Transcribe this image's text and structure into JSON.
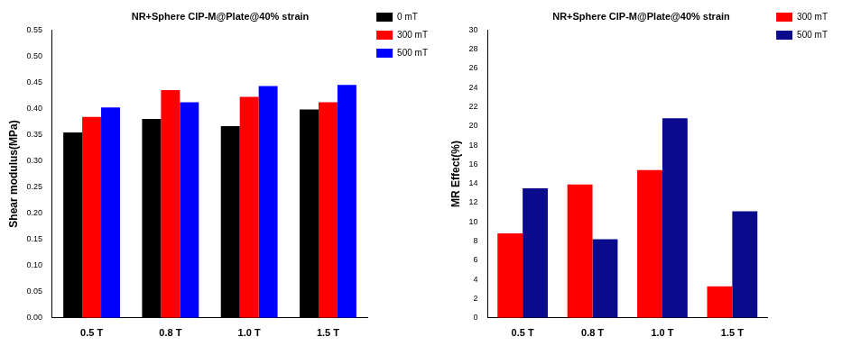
{
  "chart_data": [
    {
      "type": "bar",
      "title": "NR+Sphere CIP-M@Plate@40% strain",
      "y_label": "Shear modulus(MPa)",
      "categories": [
        "0.5 T",
        "0.8 T",
        "1.0 T",
        "1.5 T"
      ],
      "series": [
        {
          "name": "0 mT",
          "color": "#000000",
          "values": [
            0.354,
            0.38,
            0.366,
            0.398
          ]
        },
        {
          "name": "300 mT",
          "color": "#ff0000",
          "values": [
            0.384,
            0.435,
            0.422,
            0.412
          ]
        },
        {
          "name": "500 mT",
          "color": "#0000ff",
          "values": [
            0.402,
            0.412,
            0.443,
            0.445
          ]
        }
      ],
      "ylim": [
        0,
        0.55
      ],
      "yticks": [
        {
          "value": 0,
          "label": "0.00"
        },
        {
          "value": 0.05,
          "label": "0.05"
        },
        {
          "value": 0.1,
          "label": "0.10"
        },
        {
          "value": 0.15,
          "label": "0.15"
        },
        {
          "value": 0.2,
          "label": "0.20"
        },
        {
          "value": 0.25,
          "label": "0.25"
        },
        {
          "value": 0.3,
          "label": "0.30"
        },
        {
          "value": 0.35,
          "label": "0.35"
        },
        {
          "value": 0.4,
          "label": "0.40"
        },
        {
          "value": 0.45,
          "label": "0.45"
        },
        {
          "value": 0.5,
          "label": "0.50"
        },
        {
          "value": 0.55,
          "label": "0.55"
        }
      ],
      "grid": false,
      "legend": "upper right"
    },
    {
      "type": "bar",
      "title": "NR+Sphere CIP-M@Plate@40% strain",
      "y_label": "MR Effect(%)",
      "categories": [
        "0.5 T",
        "0.8 T",
        "1.0 T",
        "1.5 T"
      ],
      "series": [
        {
          "name": "300 mT",
          "color": "#ff0000",
          "values": [
            8.8,
            13.9,
            15.4,
            3.3
          ]
        },
        {
          "name": "500 mT",
          "color": "#0a0a8c",
          "values": [
            13.5,
            8.2,
            20.8,
            11.1
          ]
        }
      ],
      "ylim": [
        0,
        30
      ],
      "yticks": [
        0,
        2,
        4,
        6,
        8,
        10,
        12,
        14,
        16,
        18,
        20,
        22,
        24,
        26,
        28,
        30
      ],
      "grid": false,
      "legend": "upper right"
    }
  ]
}
